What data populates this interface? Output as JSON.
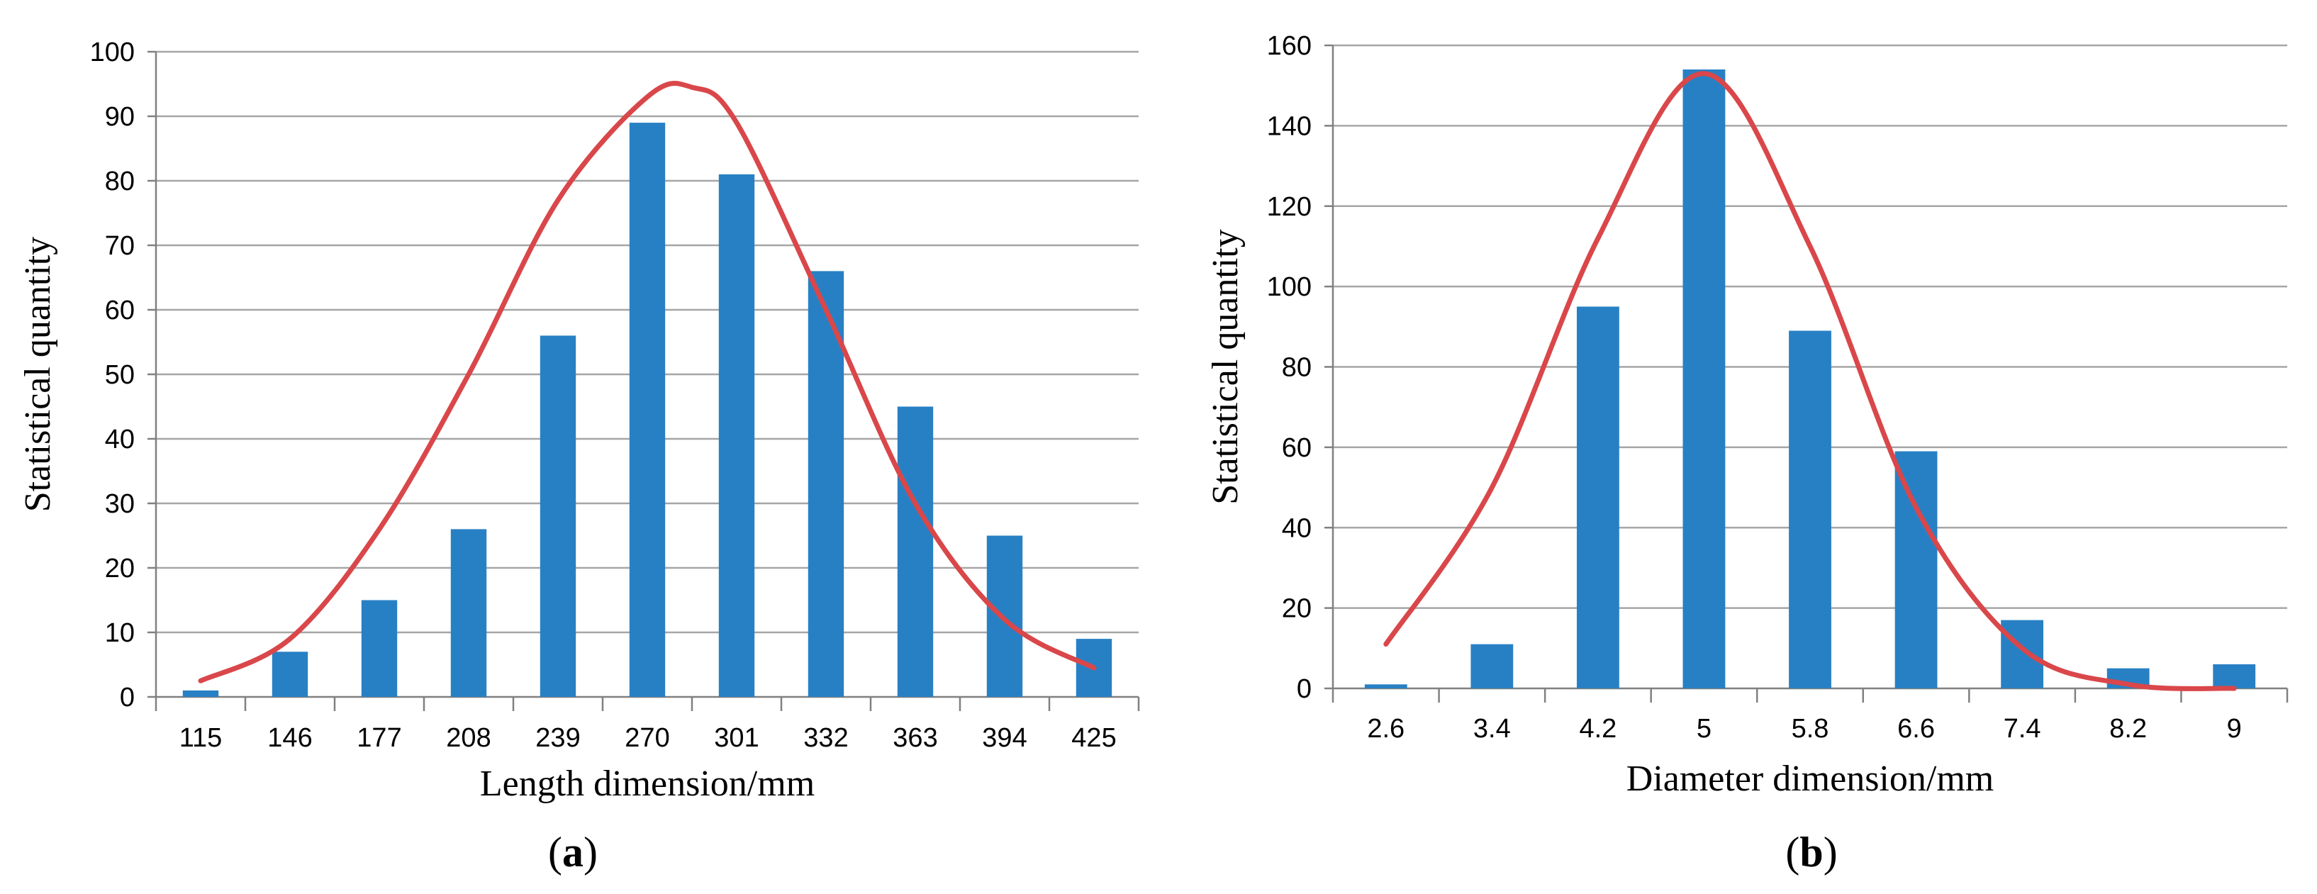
{
  "chart_data": [
    {
      "panel": "(a)",
      "panel_letter": "a",
      "type": "bar",
      "xlabel": "Length dimension/mm",
      "ylabel": "Statistical quantity",
      "categories": [
        "115",
        "146",
        "177",
        "208",
        "239",
        "270",
        "301",
        "332",
        "363",
        "394",
        "425"
      ],
      "values": [
        1,
        7,
        15,
        26,
        56,
        89,
        81,
        66,
        45,
        25,
        9
      ],
      "ylim": [
        0,
        100
      ],
      "yticks": [
        0,
        10,
        20,
        30,
        40,
        50,
        60,
        70,
        80,
        90,
        100
      ],
      "grid": true,
      "fit_curve": {
        "type": "line",
        "color": "#d9474a",
        "x_index": [
          0,
          1,
          2,
          3,
          4,
          5,
          5.5,
          6,
          7,
          8,
          9,
          10
        ],
        "y": [
          2.5,
          9,
          26,
          50,
          77,
          93,
          94.5,
          89,
          60,
          30,
          12,
          4.5
        ]
      }
    },
    {
      "panel": "(b)",
      "panel_letter": "b",
      "type": "bar",
      "xlabel": "Diameter dimension/mm",
      "ylabel": "Statistical quantity",
      "categories": [
        "2.6",
        "3.4",
        "4.2",
        "5",
        "5.8",
        "6.6",
        "7.4",
        "8.2",
        "9"
      ],
      "values": [
        1,
        11,
        95,
        154,
        89,
        59,
        17,
        5,
        6
      ],
      "ylim": [
        0,
        160
      ],
      "yticks": [
        0,
        20,
        40,
        60,
        80,
        100,
        120,
        140,
        160
      ],
      "grid": true,
      "fit_curve": {
        "type": "line",
        "color": "#d9474a",
        "x_index": [
          0,
          1,
          2,
          3,
          4,
          5,
          6,
          7,
          8
        ],
        "y": [
          11,
          50,
          112,
          153,
          110,
          45,
          10,
          1,
          0
        ]
      }
    }
  ],
  "colors": {
    "bar": "#2880c4",
    "curve": "#d9474a",
    "grid": "#a6a6a6",
    "axis": "#808080"
  }
}
